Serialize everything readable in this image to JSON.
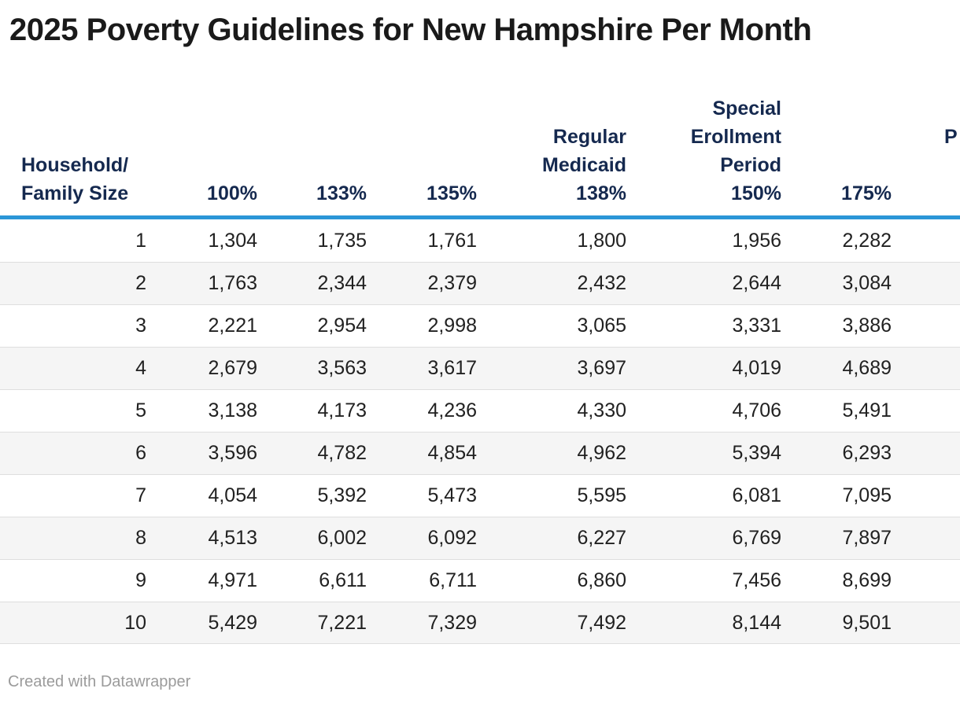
{
  "title": "2025 Poverty Guidelines for New Hampshire Per Month",
  "footer": {
    "attribution": "Created with Datawrapper"
  },
  "colors": {
    "accent_rule": "#2b96d7",
    "header_text": "#15294f",
    "body_text": "#212121",
    "alt_row_background": "#f5f5f5",
    "row_divider": "#dedede",
    "attribution_text": "#9b9b9b"
  },
  "table": {
    "columns": [
      {
        "id": "household-family-size",
        "label": "Household/\nFamily Size"
      },
      {
        "id": "100-pct",
        "label": "100%"
      },
      {
        "id": "133-pct",
        "label": "133%"
      },
      {
        "id": "135-pct",
        "label": "135%"
      },
      {
        "id": "regular-medicaid-138-pct",
        "label": "Regular\nMedicaid\n138%"
      },
      {
        "id": "special-erollment-period-150-pct",
        "label": "Special\nErollment\nPeriod\n150%"
      },
      {
        "id": "175-pct",
        "label": "175%"
      },
      {
        "id": "clipped",
        "label": ""
      }
    ],
    "clipped_column": {
      "visible_header_text": "P"
    },
    "rows": [
      [
        "1",
        "1,304",
        "1,735",
        "1,761",
        "1,800",
        "1,956",
        "2,282"
      ],
      [
        "2",
        "1,763",
        "2,344",
        "2,379",
        "2,432",
        "2,644",
        "3,084"
      ],
      [
        "3",
        "2,221",
        "2,954",
        "2,998",
        "3,065",
        "3,331",
        "3,886"
      ],
      [
        "4",
        "2,679",
        "3,563",
        "3,617",
        "3,697",
        "4,019",
        "4,689"
      ],
      [
        "5",
        "3,138",
        "4,173",
        "4,236",
        "4,330",
        "4,706",
        "5,491"
      ],
      [
        "6",
        "3,596",
        "4,782",
        "4,854",
        "4,962",
        "5,394",
        "6,293"
      ],
      [
        "7",
        "4,054",
        "5,392",
        "5,473",
        "5,595",
        "6,081",
        "7,095"
      ],
      [
        "8",
        "4,513",
        "6,002",
        "6,092",
        "6,227",
        "6,769",
        "7,897"
      ],
      [
        "9",
        "4,971",
        "6,611",
        "6,711",
        "6,860",
        "7,456",
        "8,699"
      ],
      [
        "10",
        "5,429",
        "7,221",
        "7,329",
        "7,492",
        "8,144",
        "9,501"
      ]
    ]
  },
  "chart_data": {
    "type": "table",
    "title": "2025 Poverty Guidelines for New Hampshire Per Month",
    "columns": [
      "Household/Family Size",
      "100%",
      "133%",
      "135%",
      "Regular Medicaid 138%",
      "Special Erollment Period 150%",
      "175%"
    ],
    "categories": [
      1,
      2,
      3,
      4,
      5,
      6,
      7,
      8,
      9,
      10
    ],
    "series": [
      {
        "name": "100%",
        "values": [
          1304,
          1763,
          2221,
          2679,
          3138,
          3596,
          4054,
          4513,
          4971,
          5429
        ]
      },
      {
        "name": "133%",
        "values": [
          1735,
          2344,
          2954,
          3563,
          4173,
          4782,
          5392,
          6002,
          6611,
          7221
        ]
      },
      {
        "name": "135%",
        "values": [
          1761,
          2379,
          2998,
          3617,
          4236,
          4854,
          5473,
          6092,
          6711,
          7329
        ]
      },
      {
        "name": "Regular Medicaid 138%",
        "values": [
          1800,
          2432,
          3065,
          3697,
          4330,
          4962,
          5595,
          6227,
          6860,
          7492
        ]
      },
      {
        "name": "Special Erollment Period 150%",
        "values": [
          1956,
          2644,
          3331,
          4019,
          4706,
          5394,
          6081,
          6769,
          7456,
          8144
        ]
      },
      {
        "name": "175%",
        "values": [
          2282,
          3084,
          3886,
          4689,
          5491,
          6293,
          7095,
          7897,
          8699,
          9501
        ]
      }
    ]
  }
}
